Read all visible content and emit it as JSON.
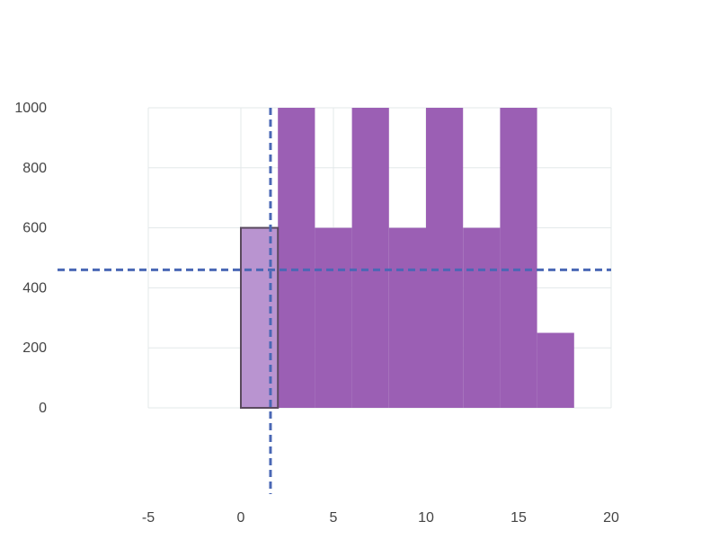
{
  "chart_data": {
    "type": "bar",
    "title": "",
    "xlabel": "",
    "ylabel": "",
    "xlim": [
      -5,
      20
    ],
    "ylim": [
      0,
      1000
    ],
    "x_ticks": [
      "-5",
      "0",
      "5",
      "10",
      "15",
      "20"
    ],
    "y_ticks": [
      "0",
      "200",
      "400",
      "600",
      "800",
      "1000"
    ],
    "grid": true,
    "bin_width": 2,
    "bins": [
      {
        "x0": 0,
        "x1": 2,
        "value": 600,
        "highlighted": true
      },
      {
        "x0": 2,
        "x1": 4,
        "value": 1000,
        "highlighted": false
      },
      {
        "x0": 4,
        "x1": 6,
        "value": 600,
        "highlighted": false
      },
      {
        "x0": 6,
        "x1": 8,
        "value": 1000,
        "highlighted": false
      },
      {
        "x0": 8,
        "x1": 10,
        "value": 600,
        "highlighted": false
      },
      {
        "x0": 10,
        "x1": 12,
        "value": 1000,
        "highlighted": false
      },
      {
        "x0": 12,
        "x1": 14,
        "value": 600,
        "highlighted": false
      },
      {
        "x0": 14,
        "x1": 16,
        "value": 1000,
        "highlighted": false
      },
      {
        "x0": 16,
        "x1": 18,
        "value": 250,
        "highlighted": false
      }
    ],
    "crosshair": {
      "x": 1.6,
      "y": 460
    },
    "colors": {
      "bar": "#9b5fb4",
      "bar_highlight": "#b994d0",
      "bar_highlight_stroke": "#5a4a5e",
      "crosshair": "#4a68b5",
      "grid": "#e3e8ea"
    }
  }
}
